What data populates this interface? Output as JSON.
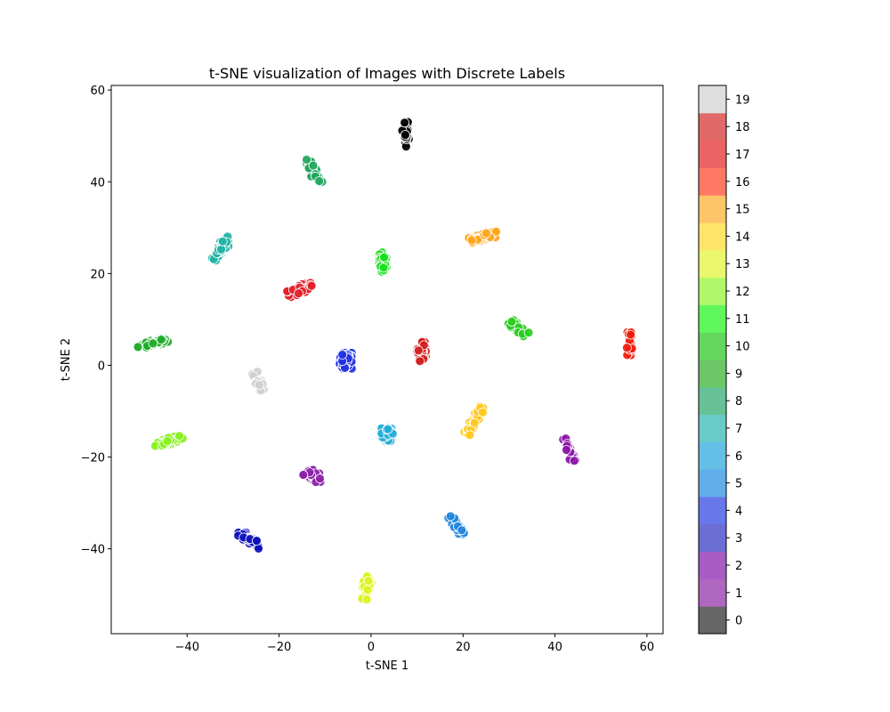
{
  "chart_data": {
    "type": "scatter",
    "title": "t-SNE visualization of Images with Discrete Labels",
    "xlabel": "t-SNE 1",
    "ylabel": "t-SNE 2",
    "xlim": [
      -56.5,
      63.5
    ],
    "ylim": [
      -58.5,
      61
    ],
    "xticks": [
      -40,
      -20,
      0,
      20,
      40,
      60
    ],
    "yticks": [
      -40,
      -20,
      0,
      20,
      40,
      60
    ],
    "grid": false,
    "colorbar": {
      "labels": [
        "0",
        "1",
        "2",
        "3",
        "4",
        "5",
        "6",
        "7",
        "8",
        "9",
        "10",
        "11",
        "12",
        "13",
        "14",
        "15",
        "16",
        "17",
        "18",
        "19"
      ],
      "colors": [
        "#666666",
        "#b067bf",
        "#a95cc4",
        "#6b6ed2",
        "#6877ea",
        "#62aeec",
        "#63bfe6",
        "#6acac8",
        "#67c397",
        "#6cc768",
        "#64d65e",
        "#60f75c",
        "#b0f86a",
        "#eaf66b",
        "#fde56a",
        "#fdc468",
        "#ff7865",
        "#eb6363",
        "#e16a68",
        "#dedede"
      ]
    },
    "clusters": [
      {
        "label": "black",
        "color": "#000000",
        "cx": 7.5,
        "cy": 50.5,
        "sx": 0.7,
        "sy": 3.0,
        "rot": 0,
        "n": 28
      },
      {
        "label": "teal-green",
        "color": "#22a55e",
        "cx": -12.5,
        "cy": 42,
        "sx": 3.2,
        "sy": 0.9,
        "rot": -62,
        "n": 40
      },
      {
        "label": "teal",
        "color": "#1fb3a5",
        "cx": -32.5,
        "cy": 25.5,
        "sx": 2.9,
        "sy": 1.1,
        "rot": 60,
        "n": 40
      },
      {
        "label": "bright-green",
        "color": "#17e01a",
        "cx": 2.5,
        "cy": 22.5,
        "sx": 2.1,
        "sy": 0.9,
        "rot": 90,
        "n": 50
      },
      {
        "label": "orange",
        "color": "#ffa51a",
        "cx": 24.5,
        "cy": 28,
        "sx": 3.2,
        "sy": 0.8,
        "rot": 12,
        "n": 50
      },
      {
        "label": "red",
        "color": "#e2202a",
        "cx": -15.5,
        "cy": 16.5,
        "sx": 2.7,
        "sy": 0.9,
        "rot": 20,
        "n": 50
      },
      {
        "label": "dark-red",
        "color": "#d21c1c",
        "cx": 11,
        "cy": 3,
        "sx": 0.9,
        "sy": 2.1,
        "rot": 0,
        "n": 50
      },
      {
        "label": "green",
        "color": "#26cc1c",
        "cx": 32,
        "cy": 8,
        "sx": 2.3,
        "sy": 0.8,
        "rot": -40,
        "n": 40
      },
      {
        "label": "red-orange",
        "color": "#f11a0c",
        "cx": 56.2,
        "cy": 5,
        "sx": 0.55,
        "sy": 2.8,
        "rot": 0,
        "n": 28
      },
      {
        "label": "forest-green",
        "color": "#1faa2a",
        "cx": -47.5,
        "cy": 4.8,
        "sx": 3.3,
        "sy": 0.6,
        "rot": 12,
        "n": 50
      },
      {
        "label": "blue",
        "color": "#1c2ce4",
        "cx": -5.5,
        "cy": 1,
        "sx": 1.3,
        "sy": 1.7,
        "rot": 0,
        "n": 70
      },
      {
        "label": "light-gray",
        "color": "#cfcfcf",
        "cx": -24.5,
        "cy": -3.5,
        "sx": 2.1,
        "sy": 0.9,
        "rot": -60,
        "n": 35
      },
      {
        "label": "yellow",
        "color": "#ffc81a",
        "cx": 22.5,
        "cy": -12,
        "sx": 3.3,
        "sy": 0.7,
        "rot": 60,
        "n": 38
      },
      {
        "label": "lime",
        "color": "#83f21a",
        "cx": -44,
        "cy": -16.5,
        "sx": 3.1,
        "sy": 0.8,
        "rot": 12,
        "n": 40
      },
      {
        "label": "sky-blue",
        "color": "#1facd9",
        "cx": 3.5,
        "cy": -15,
        "sx": 1.2,
        "sy": 1.5,
        "rot": 0,
        "n": 60
      },
      {
        "label": "violet",
        "color": "#8a14a6",
        "cx": 43,
        "cy": -18.5,
        "sx": 2.6,
        "sy": 0.6,
        "rot": -68,
        "n": 30
      },
      {
        "label": "purple",
        "color": "#8a22a8",
        "cx": -12.5,
        "cy": -24,
        "sx": 2.0,
        "sy": 1.0,
        "rot": -30,
        "n": 55
      },
      {
        "label": "navy",
        "color": "#0c10bc",
        "cx": -26.5,
        "cy": -38,
        "sx": 2.8,
        "sy": 0.8,
        "rot": -38,
        "n": 35
      },
      {
        "label": "azure",
        "color": "#1f86de",
        "cx": 18.5,
        "cy": -35,
        "sx": 2.4,
        "sy": 0.8,
        "rot": -50,
        "n": 40
      },
      {
        "label": "yellow-green",
        "color": "#dcf21c",
        "cx": -1,
        "cy": -48.5,
        "sx": 2.5,
        "sy": 0.9,
        "rot": 80,
        "n": 45
      }
    ]
  }
}
